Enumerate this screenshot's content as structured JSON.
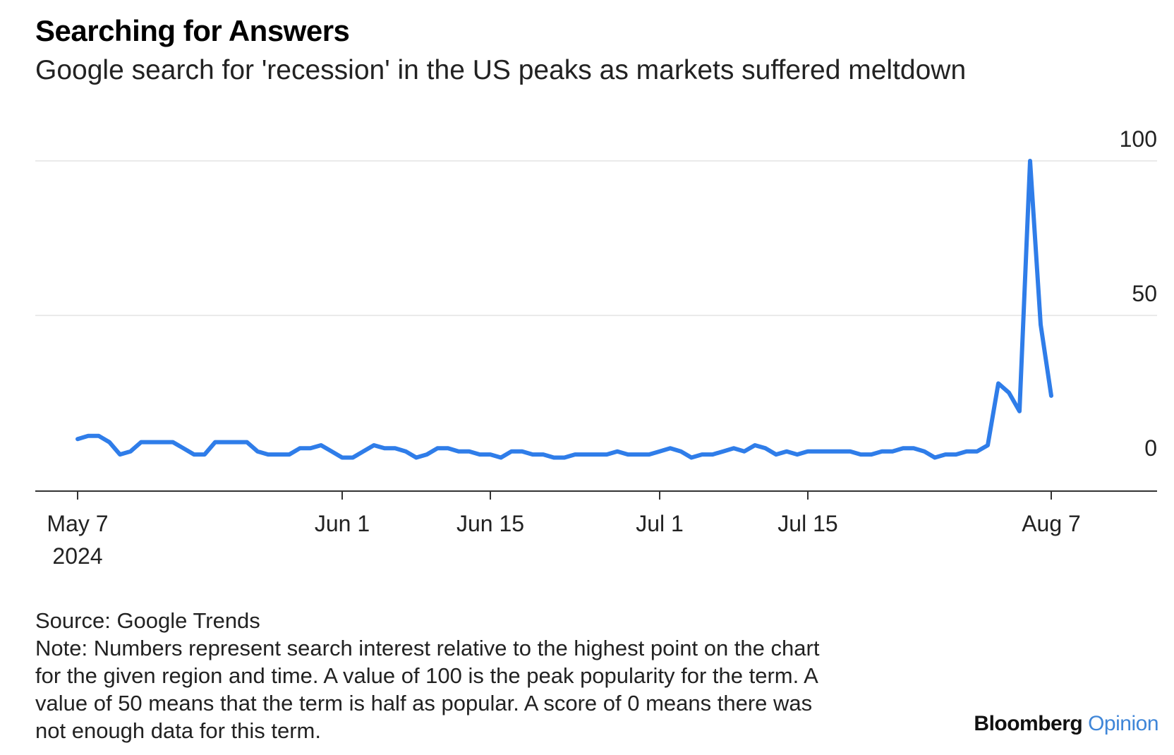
{
  "chart_data": {
    "type": "line",
    "title": "Searching for Answers",
    "subtitle": "Google search for 'recession' in the US peaks as markets suffered meltdown",
    "ylim": [
      0,
      100
    ],
    "yticks": [
      "100",
      "50",
      "0"
    ],
    "ytick_values": [
      100,
      50,
      0
    ],
    "xticks": [
      {
        "label": "May 7",
        "sublabel": "2024",
        "date": "2024-05-07"
      },
      {
        "label": "Jun 1",
        "sublabel": "",
        "date": "2024-06-01"
      },
      {
        "label": "Jun 15",
        "sublabel": "",
        "date": "2024-06-15"
      },
      {
        "label": "Jul 1",
        "sublabel": "",
        "date": "2024-07-01"
      },
      {
        "label": "Jul 15",
        "sublabel": "",
        "date": "2024-07-15"
      },
      {
        "label": "Aug 7",
        "sublabel": "",
        "date": "2024-08-07"
      }
    ],
    "xlim": [
      "2024-05-03",
      "2024-08-17"
    ],
    "grid": true,
    "line_color": "#2f7de9",
    "series": [
      {
        "points": [
          [
            "2024-05-07",
            10
          ],
          [
            "2024-05-08",
            11
          ],
          [
            "2024-05-09",
            11
          ],
          [
            "2024-05-10",
            9
          ],
          [
            "2024-05-11",
            5
          ],
          [
            "2024-05-12",
            6
          ],
          [
            "2024-05-13",
            9
          ],
          [
            "2024-05-14",
            9
          ],
          [
            "2024-05-15",
            9
          ],
          [
            "2024-05-16",
            9
          ],
          [
            "2024-05-17",
            7
          ],
          [
            "2024-05-18",
            5
          ],
          [
            "2024-05-19",
            5
          ],
          [
            "2024-05-20",
            9
          ],
          [
            "2024-05-21",
            9
          ],
          [
            "2024-05-22",
            9
          ],
          [
            "2024-05-23",
            9
          ],
          [
            "2024-05-24",
            6
          ],
          [
            "2024-05-25",
            5
          ],
          [
            "2024-05-26",
            5
          ],
          [
            "2024-05-27",
            5
          ],
          [
            "2024-05-28",
            7
          ],
          [
            "2024-05-29",
            7
          ],
          [
            "2024-05-30",
            8
          ],
          [
            "2024-05-31",
            6
          ],
          [
            "2024-06-01",
            4
          ],
          [
            "2024-06-02",
            4
          ],
          [
            "2024-06-03",
            6
          ],
          [
            "2024-06-04",
            8
          ],
          [
            "2024-06-05",
            7
          ],
          [
            "2024-06-06",
            7
          ],
          [
            "2024-06-07",
            6
          ],
          [
            "2024-06-08",
            4
          ],
          [
            "2024-06-09",
            5
          ],
          [
            "2024-06-10",
            7
          ],
          [
            "2024-06-11",
            7
          ],
          [
            "2024-06-12",
            6
          ],
          [
            "2024-06-13",
            6
          ],
          [
            "2024-06-14",
            5
          ],
          [
            "2024-06-15",
            5
          ],
          [
            "2024-06-16",
            4
          ],
          [
            "2024-06-17",
            6
          ],
          [
            "2024-06-18",
            6
          ],
          [
            "2024-06-19",
            5
          ],
          [
            "2024-06-20",
            5
          ],
          [
            "2024-06-21",
            4
          ],
          [
            "2024-06-22",
            4
          ],
          [
            "2024-06-23",
            5
          ],
          [
            "2024-06-24",
            5
          ],
          [
            "2024-06-25",
            5
          ],
          [
            "2024-06-26",
            5
          ],
          [
            "2024-06-27",
            6
          ],
          [
            "2024-06-28",
            5
          ],
          [
            "2024-06-29",
            5
          ],
          [
            "2024-06-30",
            5
          ],
          [
            "2024-07-01",
            6
          ],
          [
            "2024-07-02",
            7
          ],
          [
            "2024-07-03",
            6
          ],
          [
            "2024-07-04",
            4
          ],
          [
            "2024-07-05",
            5
          ],
          [
            "2024-07-06",
            5
          ],
          [
            "2024-07-07",
            6
          ],
          [
            "2024-07-08",
            7
          ],
          [
            "2024-07-09",
            6
          ],
          [
            "2024-07-10",
            8
          ],
          [
            "2024-07-11",
            7
          ],
          [
            "2024-07-12",
            5
          ],
          [
            "2024-07-13",
            6
          ],
          [
            "2024-07-14",
            5
          ],
          [
            "2024-07-15",
            6
          ],
          [
            "2024-07-16",
            6
          ],
          [
            "2024-07-17",
            6
          ],
          [
            "2024-07-18",
            6
          ],
          [
            "2024-07-19",
            6
          ],
          [
            "2024-07-20",
            5
          ],
          [
            "2024-07-21",
            5
          ],
          [
            "2024-07-22",
            6
          ],
          [
            "2024-07-23",
            6
          ],
          [
            "2024-07-24",
            7
          ],
          [
            "2024-07-25",
            7
          ],
          [
            "2024-07-26",
            6
          ],
          [
            "2024-07-27",
            4
          ],
          [
            "2024-07-28",
            5
          ],
          [
            "2024-07-29",
            5
          ],
          [
            "2024-07-30",
            6
          ],
          [
            "2024-07-31",
            6
          ],
          [
            "2024-08-01",
            8
          ],
          [
            "2024-08-02",
            28
          ],
          [
            "2024-08-03",
            25
          ],
          [
            "2024-08-04",
            19
          ],
          [
            "2024-08-05",
            100
          ],
          [
            "2024-08-06",
            47
          ],
          [
            "2024-08-07",
            24
          ]
        ]
      }
    ]
  },
  "footer": {
    "source": "Source: Google Trends",
    "note_lines": [
      "Note: Numbers represent search interest relative to the highest point on the chart",
      "for the given region and time. A value of 100 is the peak popularity for the term. A",
      "value of 50 means that the term is half as popular. A score of 0 means there was",
      "not enough data for this term."
    ]
  },
  "brand": {
    "name": "Bloomberg",
    "section": "Opinion"
  }
}
